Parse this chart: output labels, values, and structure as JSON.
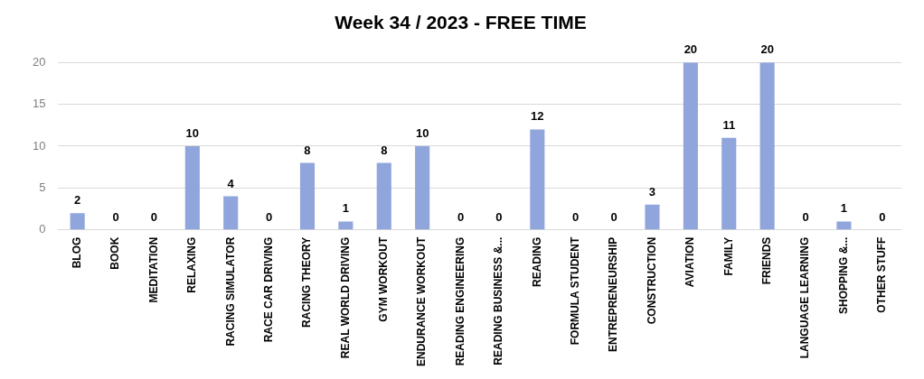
{
  "chart_data": {
    "type": "bar",
    "title": "Week 34 / 2023 - FREE TIME",
    "categories": [
      "BLOG",
      "BOOK",
      "MEDITATION",
      "RELAXING",
      "RACING SIMULATOR",
      "RACE CAR DRIVING",
      "RACING THEORY",
      "REAL WORLD DRIVING",
      "GYM WORKOUT",
      "ENDURANCE WORKOUT",
      "READING ENGINEERING",
      "READING BUSINESS &...",
      "READING",
      "FORMULA STUDENT",
      "ENTREPRENEURSHIP",
      "CONSTRUCTION",
      "AVIATION",
      "FAMILY",
      "FRIENDS",
      "LANGUAGE LEARNING",
      "SHOPPING &...",
      "OTHER STUFF"
    ],
    "values": [
      2,
      0,
      0,
      10,
      4,
      0,
      8,
      1,
      8,
      10,
      0,
      0,
      12,
      0,
      0,
      3,
      20,
      11,
      20,
      0,
      1,
      0
    ],
    "color": "#8fa5dc",
    "ylim": [
      0,
      20
    ],
    "yticks": [
      0,
      5,
      10,
      15,
      20
    ],
    "grid": "y",
    "data_labels": true
  }
}
